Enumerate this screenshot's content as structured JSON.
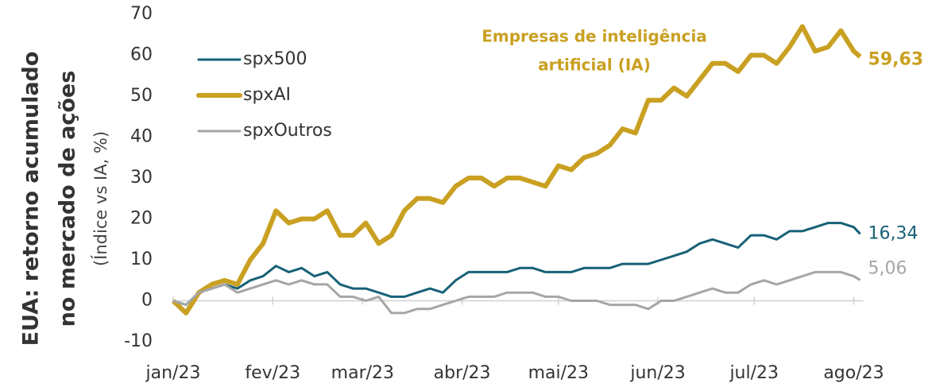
{
  "chart_data": {
    "type": "line",
    "y_title": [
      "EUA: retorno acumulado",
      "no mercado de ações"
    ],
    "y_subtitle": "(Índice vs IA, %)",
    "annotation": [
      "Empresas de inteligência",
      "artificial (IA)"
    ],
    "x": [
      0,
      4,
      8,
      12,
      16,
      20,
      24,
      28,
      32,
      36,
      40,
      44,
      48,
      52,
      56,
      60,
      64,
      68,
      72,
      76,
      80,
      84,
      88,
      92,
      96,
      100,
      104,
      108,
      112,
      116,
      120,
      124,
      128,
      132,
      136,
      140,
      144,
      148,
      152,
      156,
      160,
      164,
      168,
      172,
      176,
      180,
      184,
      188,
      192,
      196,
      200,
      204,
      208,
      212,
      214
    ],
    "xlim": [
      0,
      215
    ],
    "xticks": [
      {
        "value": 0,
        "label": "jan/23"
      },
      {
        "value": 31,
        "label": "fev/23"
      },
      {
        "value": 59,
        "label": "mar/23"
      },
      {
        "value": 90,
        "label": "abr/23"
      },
      {
        "value": 120,
        "label": "mai/23"
      },
      {
        "value": 151,
        "label": "jun/23"
      },
      {
        "value": 181,
        "label": "jul/23"
      },
      {
        "value": 212,
        "label": "ago/23"
      }
    ],
    "ylim": [
      -10,
      70
    ],
    "yticks": [
      -10,
      0,
      10,
      20,
      30,
      40,
      50,
      60,
      70
    ],
    "legend": "top-left",
    "series": [
      {
        "name": "spx500",
        "color": "#176177",
        "width": 3,
        "last_label": "16,34",
        "values": [
          0,
          -1,
          2,
          3,
          4,
          3,
          5,
          6,
          8.5,
          7,
          8,
          6,
          7,
          4,
          3,
          3,
          2,
          1,
          1,
          2,
          3,
          2,
          5,
          7,
          7,
          7,
          7,
          8,
          8,
          7,
          7,
          7,
          8,
          8,
          8,
          9,
          9,
          9,
          10,
          11,
          12,
          14,
          15,
          14,
          13,
          16,
          16,
          15,
          17,
          17,
          18,
          19,
          19,
          18,
          16.34
        ]
      },
      {
        "name": "spxAI",
        "color": "#c9a021",
        "width": 6,
        "last_label": "59,63",
        "values": [
          0,
          -3,
          2,
          4,
          5,
          4,
          10,
          14,
          22,
          19,
          20,
          20,
          22,
          16,
          16,
          19,
          14,
          16,
          22,
          25,
          25,
          24,
          28,
          30,
          30,
          28,
          30,
          30,
          29,
          28,
          33,
          32,
          35,
          36,
          38,
          42,
          41,
          49,
          49,
          52,
          50,
          54,
          58,
          58,
          56,
          60,
          60,
          58,
          62,
          67,
          61,
          62,
          66,
          61,
          59.63
        ]
      },
      {
        "name": "spxOutros",
        "color": "#a6a6a6",
        "width": 3,
        "last_label": "5,06",
        "values": [
          0,
          -1,
          2,
          3,
          4,
          2,
          3,
          4,
          5,
          4,
          5,
          4,
          4,
          1,
          1,
          0,
          1,
          -3,
          -3,
          -2,
          -2,
          -1,
          0,
          1,
          1,
          1,
          2,
          2,
          2,
          1,
          1,
          0,
          0,
          0,
          -1,
          -1,
          -1,
          -2,
          0,
          0,
          1,
          2,
          3,
          2,
          2,
          4,
          5,
          4,
          5,
          6,
          7,
          7,
          7,
          6,
          5.06
        ]
      }
    ]
  }
}
